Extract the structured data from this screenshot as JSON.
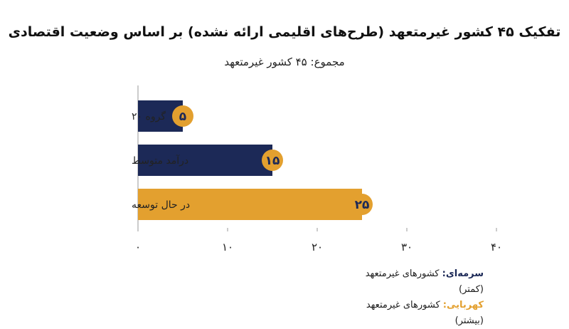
{
  "title": "تفکیک ۴۵ کشور غیرمتعهد (طرح‌های اقلیمی ارائه نشده) بر اساس وضعیت اقتصادی",
  "subtitle": "مجموع: ۴۵ کشور غیرمتعهد",
  "colors": {
    "navy": "#1c2957",
    "amber": "#e3a02f",
    "axis": "#9a9a9a",
    "label_dark": "#1c2957"
  },
  "legend": [
    {
      "key": "سرمه‌ای:",
      "text": " کشورهای غیرمتعهد (کمتر)",
      "color": "#1c2957"
    },
    {
      "key": "کهربایی:",
      "text": " کشورهای غیرمتعهد (بیشتر)",
      "color": "#e3a02f"
    }
  ],
  "chart_data": {
    "type": "bar",
    "orientation": "horizontal",
    "categories": [
      "گروه ۲۰",
      "درآمد متوسط",
      "در حال توسعه"
    ],
    "values": [
      5,
      15,
      25
    ],
    "value_labels": [
      "۵",
      "۱۵",
      "۲۵"
    ],
    "bar_colors": [
      "#1c2957",
      "#1c2957",
      "#e3a02f"
    ],
    "xlim": [
      0,
      40
    ],
    "xticks": [
      0,
      10,
      20,
      30,
      40
    ],
    "xtick_labels": [
      "۰",
      "۱۰",
      "۲۰",
      "۳۰",
      "۴۰"
    ],
    "grid": false
  }
}
